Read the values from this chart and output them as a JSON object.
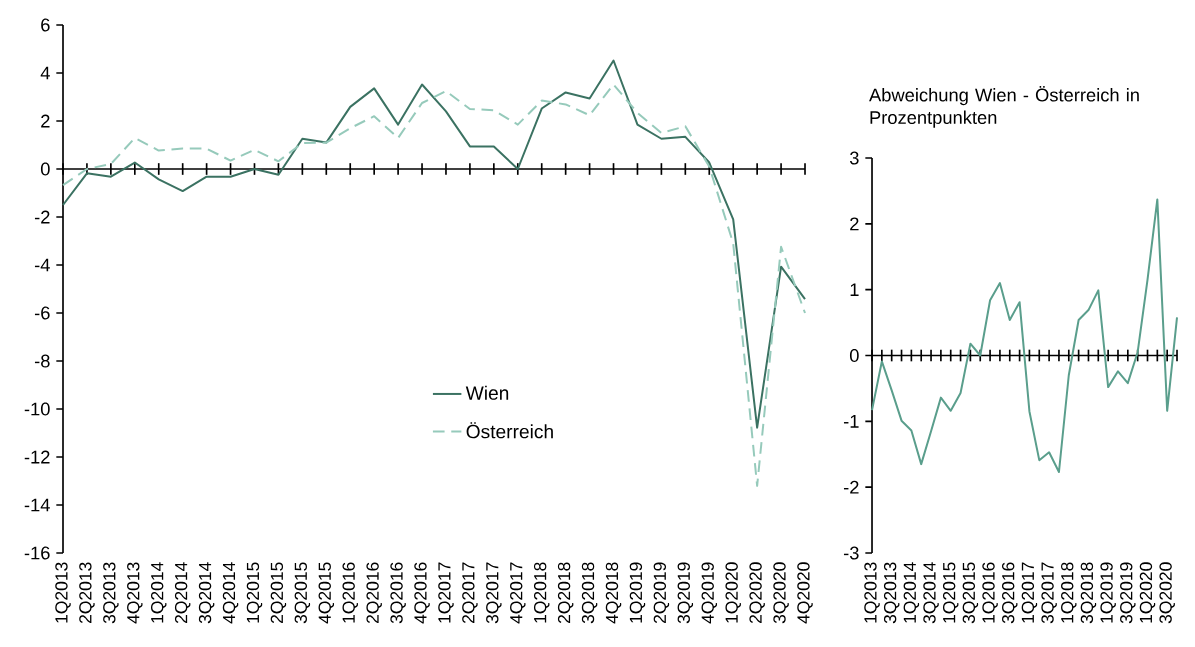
{
  "chart_data": [
    {
      "type": "line",
      "categories": [
        "1Q2013",
        "2Q2013",
        "3Q2013",
        "4Q2013",
        "1Q2014",
        "2Q2014",
        "3Q2014",
        "4Q2014",
        "1Q2015",
        "2Q2015",
        "3Q2015",
        "4Q2015",
        "1Q2016",
        "2Q2016",
        "3Q2016",
        "4Q2016",
        "1Q2017",
        "2Q2017",
        "3Q2017",
        "4Q2017",
        "1Q2018",
        "2Q2018",
        "3Q2018",
        "4Q2018",
        "1Q2019",
        "2Q2019",
        "3Q2019",
        "4Q2019",
        "1Q2020",
        "2Q2020",
        "3Q2020",
        "4Q2020"
      ],
      "series": [
        {
          "name": "Wien",
          "color": "#3b7262",
          "line_style": "solid",
          "values": [
            -1.5,
            -0.18,
            -0.32,
            0.27,
            -0.43,
            -0.92,
            -0.32,
            -0.32,
            0,
            -0.24,
            1.26,
            1.1,
            2.59,
            3.36,
            1.85,
            3.52,
            2.4,
            0.94,
            0.94,
            0,
            2.52,
            3.19,
            2.94,
            4.52,
            1.85,
            1.26,
            1.34,
            0.27,
            -2.1,
            -10.78,
            -4.07,
            -5.42
          ]
        },
        {
          "name": "Österreich",
          "color": "#96cabb",
          "line_style": "dashed",
          "values": [
            -0.67,
            0,
            0.21,
            1.29,
            0.77,
            0.85,
            0.85,
            0.35,
            0.8,
            0.32,
            1.08,
            1.1,
            1.7,
            2.2,
            1.29,
            2.75,
            3.25,
            2.5,
            2.45,
            1.85,
            2.85,
            2.69,
            2.24,
            3.52,
            2.34,
            1.5,
            1.78,
            0.1,
            -3.1,
            -13.2,
            -3.24,
            -6.0
          ]
        }
      ],
      "ylim": [
        -16,
        6
      ],
      "yticks": [
        -16,
        -14,
        -12,
        -10,
        -8,
        -6,
        -4,
        -2,
        0,
        2,
        4,
        6
      ],
      "legend": "bottom"
    },
    {
      "type": "line",
      "title": "Abweichung Wien - Österreich in Prozentpunkten",
      "categories": [
        "1Q2013",
        null,
        "3Q2013",
        null,
        "1Q2014",
        null,
        "3Q2014",
        null,
        "1Q2015",
        null,
        "3Q2015",
        null,
        "1Q2016",
        null,
        "3Q2016",
        null,
        "1Q2017",
        null,
        "3Q2017",
        null,
        "1Q2018",
        null,
        "3Q2018",
        null,
        "1Q2019",
        null,
        "3Q2019",
        null,
        "1Q2020",
        null,
        "3Q2020",
        null
      ],
      "series": [
        {
          "color": "#5a9e8c",
          "line_style": "solid",
          "values": [
            -0.83,
            -0.09,
            -0.53,
            -0.99,
            -1.14,
            -1.65,
            -1.15,
            -0.64,
            -0.84,
            -0.57,
            0.18,
            0,
            0.84,
            1.1,
            0.54,
            0.81,
            -0.85,
            -1.59,
            -1.47,
            -1.77,
            -0.3,
            0.54,
            0.69,
            0.99,
            -0.48,
            -0.24,
            -0.42,
            0.05,
            1.15,
            2.37,
            -0.84,
            0.58
          ]
        }
      ],
      "ylim": [
        -3,
        3
      ],
      "yticks": [
        -3,
        -2,
        -1,
        0,
        1,
        2,
        3
      ]
    }
  ]
}
